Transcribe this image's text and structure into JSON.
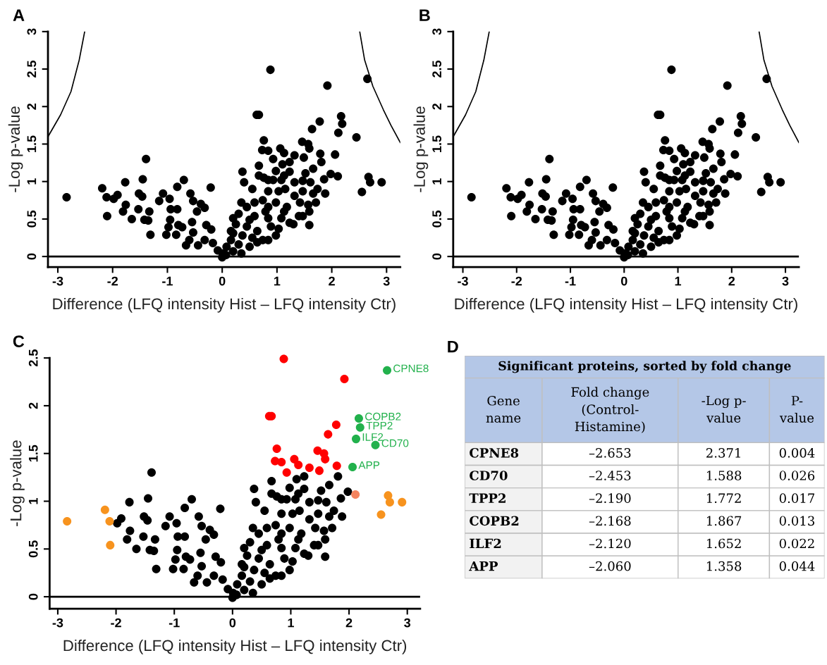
{
  "chart_data": [
    {
      "type": "scatter",
      "title": "A",
      "xlabel": "Difference (LFQ intensity Hist – LFQ intensity Ctr)",
      "ylabel": "-Log p-value",
      "xlim": [
        -3.18,
        3.25
      ],
      "ylim": [
        -0.14,
        3
      ],
      "xticks": [
        -3,
        -2,
        -1,
        0,
        1,
        2,
        3
      ],
      "yticks": [
        0,
        0.5,
        1,
        1.5,
        2,
        2.5,
        3
      ],
      "marker": "circle",
      "grid": false,
      "legend": false,
      "ref_lines": [
        {
          "axis": "y",
          "value": 0,
          "color": "#000000"
        }
      ],
      "series": [
        {
          "type": "line",
          "marker": "none",
          "color": "#000000",
          "x": [
            -3.17,
            -2.95,
            -2.76,
            -2.61,
            -2.51
          ],
          "values": [
            1.61,
            1.89,
            2.2,
            2.62,
            3.0
          ]
        },
        {
          "type": "line",
          "marker": "none",
          "color": "#000000",
          "x": [
            2.51,
            2.6,
            2.75,
            2.94,
            3.08,
            3.25
          ],
          "values": [
            3.0,
            2.62,
            2.27,
            1.96,
            1.75,
            1.52
          ]
        },
        {
          "color": "#000000",
          "x": [
            -1.77,
            -1.91,
            -1.98,
            -1.76,
            -1.81,
            -1.65,
            -1.52,
            -1.45,
            -1.46,
            -1.53,
            -1.39,
            -1.42,
            -1.33,
            -1.35,
            -1.31,
            -1.15,
            -1.08,
            -0.96,
            -0.94,
            -0.95,
            -0.98,
            -1.02,
            -0.82,
            -0.8,
            -0.84,
            -0.82,
            -0.7,
            -0.73,
            -0.66,
            -0.58,
            -0.53,
            -0.55,
            -0.53,
            -0.6,
            -0.46,
            -0.39,
            -0.32,
            -0.29,
            -0.2,
            -0.21,
            -0.44,
            -0.32,
            -0.17,
            -0.08,
            0,
            0.07,
            0.37,
            0.67,
            0.67,
            0.76,
            0.84,
            0.98,
            1.1,
            1.23,
            1.81,
            1.66,
            1.52,
            1.98,
            1.23,
            1.08,
            1.32,
            1.47,
            1.61,
            1.74,
            1.88,
            1.66,
            1.86,
            0.4,
            0.55,
            0.84,
            1.03,
            1.15,
            1.47,
            1.32,
            1.57,
            1.59,
            1.3,
            1.59,
            1.4,
            1.18,
            0.98,
            0.84,
            0.74,
            0.59,
            0.45,
            0.35,
            0.3,
            0.59,
            0.84,
            1.08,
            1.23,
            0.89,
            1.03,
            0.64,
            0.45,
            0.25,
            0.2,
            0.37,
            0.55,
            0.74,
            0.98,
            0.16,
            0.3,
            0.5,
            0.2,
            0.08,
            0.35,
            0.64,
            0.84,
            1.13,
            1.42,
            0.79,
            0.5,
            0.2,
            0.16,
            0.01,
            1.71,
            1.47,
            0.93,
            1.13
          ],
          "values": [
            0.99,
            0.82,
            0.77,
            0.69,
            0.6,
            0.5,
            0.84,
            1.03,
            0.8,
            0.63,
            1.3,
            0.49,
            0.6,
            0.48,
            0.29,
            0.74,
            0.84,
            0.77,
            0.63,
            0.49,
            0.39,
            0.29,
            0.63,
            0.42,
            0.29,
            0.93,
            1.02,
            0.39,
            0.15,
            0.84,
            0.74,
            0.46,
            0.32,
            0.22,
            0.6,
            0.7,
            0.65,
            0.42,
            0.36,
            0.92,
            0.15,
            0.22,
            0.18,
            0.08,
            -0.01,
            0.02,
            1.13,
            1.21,
            1.08,
            1.05,
            1.02,
            1.14,
            1.23,
            1.26,
            1.26,
            1.17,
            1.11,
            1.1,
            1.13,
            1.02,
            0.99,
            1.01,
            0.99,
            0.9,
            0.84,
            0.84,
            1.03,
            0.99,
            0.9,
            0.87,
            0.87,
            0.9,
            0.87,
            0.81,
            0.69,
            0.6,
            0.43,
            0.42,
            0.54,
            0.66,
            0.72,
            0.66,
            0.75,
            0.72,
            0.66,
            0.72,
            0.57,
            0.54,
            0.51,
            0.51,
            0.45,
            0.4,
            0.37,
            0.34,
            0.4,
            0.43,
            0.31,
            0.28,
            0.25,
            0.22,
            0.28,
            0.22,
            0.16,
            0.13,
            0.07,
            0.13,
            0.04,
            0.19,
            0.22,
            0.6,
            0.72,
            0.6,
            0.49,
            0.51,
            0.34,
            0.04,
            0.72,
            0.54,
            1.02,
            1.08
          ]
        },
        {
          "color": "#000000",
          "x": [
            0.88,
            1.92,
            0.63,
            0.67,
            1.78,
            1.64,
            0.76,
            1.46,
            1.57,
            1.59,
            0.73,
            0.84,
            1.06,
            1.13,
            0.93,
            1.32,
            1.49,
            1.79
          ],
          "values": [
            2.49,
            2.28,
            1.89,
            1.89,
            1.8,
            1.7,
            1.55,
            1.53,
            1.5,
            1.44,
            1.42,
            1.41,
            1.44,
            1.38,
            1.3,
            1.35,
            1.32,
            1.37
          ]
        },
        {
          "color": "#000000",
          "x": [
            -2.84,
            -2.19,
            -2.11,
            -2.1,
            2.11,
            2.67,
            2.7,
            2.91,
            2.55
          ],
          "values": [
            0.79,
            0.91,
            0.79,
            0.54,
            1.07,
            1.06,
            0.99,
            0.99,
            0.86
          ]
        },
        {
          "color": "#000000",
          "x": [
            2.65,
            2.45,
            2.19,
            2.17,
            2.12,
            2.06
          ],
          "values": [
            2.37,
            1.59,
            1.77,
            1.87,
            1.65,
            1.36
          ]
        }
      ]
    },
    {
      "type": "scatter",
      "title": "B",
      "xlabel": "Difference (LFQ intensity Hist – LFQ intensity Ctr)",
      "ylabel": "-Log p-value",
      "xlim": [
        -3.18,
        3.25
      ],
      "ylim": [
        -0.14,
        3
      ],
      "xticks": [
        -3,
        -2,
        -1,
        0,
        1,
        2,
        3
      ],
      "yticks": [
        0,
        0.5,
        1,
        1.5,
        2,
        2.5,
        3
      ],
      "marker": "circle",
      "grid": false,
      "legend": false,
      "ref_lines": [
        {
          "axis": "y",
          "value": 0,
          "color": "#000000"
        }
      ],
      "series": [
        {
          "type": "line",
          "marker": "none",
          "color": "#000000",
          "x": [
            -3.17,
            -2.95,
            -2.76,
            -2.61,
            -2.51
          ],
          "values": [
            1.61,
            1.89,
            2.2,
            2.62,
            3.0
          ]
        },
        {
          "type": "line",
          "marker": "none",
          "color": "#000000",
          "x": [
            2.51,
            2.6,
            2.75,
            2.94,
            3.08,
            3.25
          ],
          "values": [
            3.0,
            2.62,
            2.27,
            1.96,
            1.75,
            1.52
          ]
        },
        {
          "color": "#000000",
          "x": [
            -1.77,
            -1.91,
            -1.98,
            -1.76,
            -1.81,
            -1.65,
            -1.52,
            -1.45,
            -1.46,
            -1.53,
            -1.39,
            -1.42,
            -1.33,
            -1.35,
            -1.31,
            -1.15,
            -1.08,
            -0.96,
            -0.94,
            -0.95,
            -0.98,
            -1.02,
            -0.82,
            -0.8,
            -0.84,
            -0.82,
            -0.7,
            -0.73,
            -0.66,
            -0.58,
            -0.53,
            -0.55,
            -0.53,
            -0.6,
            -0.46,
            -0.39,
            -0.32,
            -0.29,
            -0.2,
            -0.21,
            -0.44,
            -0.32,
            -0.17,
            -0.08,
            0,
            0.07,
            0.37,
            0.67,
            0.67,
            0.76,
            0.84,
            0.98,
            1.1,
            1.23,
            1.81,
            1.66,
            1.52,
            1.98,
            1.23,
            1.08,
            1.32,
            1.47,
            1.61,
            1.74,
            1.88,
            1.66,
            1.86,
            0.4,
            0.55,
            0.84,
            1.03,
            1.15,
            1.47,
            1.32,
            1.57,
            1.59,
            1.3,
            1.59,
            1.4,
            1.18,
            0.98,
            0.84,
            0.74,
            0.59,
            0.45,
            0.35,
            0.3,
            0.59,
            0.84,
            1.08,
            1.23,
            0.89,
            1.03,
            0.64,
            0.45,
            0.25,
            0.2,
            0.37,
            0.55,
            0.74,
            0.98,
            0.16,
            0.3,
            0.5,
            0.2,
            0.08,
            0.35,
            0.64,
            0.84,
            1.13,
            1.42,
            0.79,
            0.5,
            0.2,
            0.16,
            0.01,
            1.71,
            1.47,
            0.93,
            1.13
          ],
          "values": [
            0.99,
            0.82,
            0.77,
            0.69,
            0.6,
            0.5,
            0.84,
            1.03,
            0.8,
            0.63,
            1.3,
            0.49,
            0.6,
            0.48,
            0.29,
            0.74,
            0.84,
            0.77,
            0.63,
            0.49,
            0.39,
            0.29,
            0.63,
            0.42,
            0.29,
            0.93,
            1.02,
            0.39,
            0.15,
            0.84,
            0.74,
            0.46,
            0.32,
            0.22,
            0.6,
            0.7,
            0.65,
            0.42,
            0.36,
            0.92,
            0.15,
            0.22,
            0.18,
            0.08,
            -0.01,
            0.02,
            1.13,
            1.21,
            1.08,
            1.05,
            1.02,
            1.14,
            1.23,
            1.26,
            1.26,
            1.17,
            1.11,
            1.1,
            1.13,
            1.02,
            0.99,
            1.01,
            0.99,
            0.9,
            0.84,
            0.84,
            1.03,
            0.99,
            0.9,
            0.87,
            0.87,
            0.9,
            0.87,
            0.81,
            0.69,
            0.6,
            0.43,
            0.42,
            0.54,
            0.66,
            0.72,
            0.66,
            0.75,
            0.72,
            0.66,
            0.72,
            0.57,
            0.54,
            0.51,
            0.51,
            0.45,
            0.4,
            0.37,
            0.34,
            0.4,
            0.43,
            0.31,
            0.28,
            0.25,
            0.22,
            0.28,
            0.22,
            0.16,
            0.13,
            0.07,
            0.13,
            0.04,
            0.19,
            0.22,
            0.6,
            0.72,
            0.6,
            0.49,
            0.51,
            0.34,
            0.04,
            0.72,
            0.54,
            1.02,
            1.08
          ]
        },
        {
          "color": "#000000",
          "x": [
            0.88,
            1.92,
            0.63,
            0.67,
            1.78,
            1.64,
            0.76,
            1.46,
            1.57,
            1.59,
            0.73,
            0.84,
            1.06,
            1.13,
            0.93,
            1.32,
            1.49,
            1.79
          ],
          "values": [
            2.49,
            2.28,
            1.89,
            1.89,
            1.8,
            1.7,
            1.55,
            1.53,
            1.5,
            1.44,
            1.42,
            1.41,
            1.44,
            1.38,
            1.3,
            1.35,
            1.32,
            1.37
          ]
        },
        {
          "color": "#000000",
          "x": [
            -2.84,
            -2.19,
            -2.11,
            -2.1,
            2.11,
            2.67,
            2.7,
            2.91,
            2.55
          ],
          "values": [
            0.79,
            0.91,
            0.79,
            0.54,
            1.07,
            1.06,
            0.99,
            0.99,
            0.86
          ]
        },
        {
          "color": "#000000",
          "x": [
            2.65,
            2.45,
            2.19,
            2.17,
            2.12,
            2.06
          ],
          "values": [
            2.37,
            1.59,
            1.77,
            1.87,
            1.65,
            1.36
          ]
        }
      ]
    },
    {
      "type": "scatter",
      "title": "C",
      "xlabel": "Difference (LFQ intensity Hist – LFQ intensity Ctr)",
      "ylabel": "-Log p-value",
      "xlim": [
        -3.14,
        3.22
      ],
      "ylim": [
        -0.125,
        2.5
      ],
      "xticks": [
        -3,
        -2,
        -1,
        0,
        1,
        2,
        3
      ],
      "yticks": [
        0,
        0.5,
        1,
        1.5,
        2,
        2.5
      ],
      "marker": "circle",
      "grid": false,
      "legend": false,
      "ref_lines": [
        {
          "axis": "y",
          "value": 0,
          "color": "#000000"
        }
      ],
      "annotations": [
        {
          "text": "CPNE8",
          "x": 2.653,
          "y": 2.371
        },
        {
          "text": "COPB2",
          "x": 2.168,
          "y": 1.867
        },
        {
          "text": "TPP2",
          "x": 2.19,
          "y": 1.772
        },
        {
          "text": "ILF2",
          "x": 2.12,
          "y": 1.652
        },
        {
          "text": "CD70",
          "x": 2.453,
          "y": 1.588
        },
        {
          "text": "APP",
          "x": 2.06,
          "y": 1.358
        }
      ],
      "series": [
        {
          "color": "#000000",
          "x": [
            -1.77,
            -1.91,
            -1.98,
            -1.76,
            -1.81,
            -1.65,
            -1.52,
            -1.45,
            -1.46,
            -1.53,
            -1.39,
            -1.42,
            -1.33,
            -1.35,
            -1.31,
            -1.15,
            -1.08,
            -0.96,
            -0.94,
            -0.95,
            -0.98,
            -1.02,
            -0.82,
            -0.8,
            -0.84,
            -0.82,
            -0.7,
            -0.73,
            -0.66,
            -0.58,
            -0.53,
            -0.55,
            -0.53,
            -0.6,
            -0.46,
            -0.39,
            -0.32,
            -0.29,
            -0.2,
            -0.21,
            -0.44,
            -0.32,
            -0.17,
            -0.08,
            0,
            0.07,
            0.37,
            0.67,
            0.67,
            0.76,
            0.84,
            0.98,
            1.1,
            1.23,
            1.81,
            1.66,
            1.52,
            1.98,
            1.23,
            1.08,
            1.32,
            1.47,
            1.61,
            1.74,
            1.88,
            1.66,
            1.86,
            0.4,
            0.55,
            0.84,
            1.03,
            1.15,
            1.47,
            1.32,
            1.57,
            1.59,
            1.3,
            1.59,
            1.4,
            1.18,
            0.98,
            0.84,
            0.74,
            0.59,
            0.45,
            0.35,
            0.3,
            0.59,
            0.84,
            1.08,
            1.23,
            0.89,
            1.03,
            0.64,
            0.45,
            0.25,
            0.2,
            0.37,
            0.55,
            0.74,
            0.98,
            0.16,
            0.3,
            0.5,
            0.2,
            0.08,
            0.35,
            0.64,
            0.84,
            1.13,
            1.42,
            0.79,
            0.5,
            0.2,
            0.16,
            0.01,
            1.71,
            1.47,
            0.93,
            1.13
          ],
          "values": [
            0.99,
            0.82,
            0.77,
            0.69,
            0.6,
            0.5,
            0.84,
            1.03,
            0.8,
            0.63,
            1.3,
            0.49,
            0.6,
            0.48,
            0.29,
            0.74,
            0.84,
            0.77,
            0.63,
            0.49,
            0.39,
            0.29,
            0.63,
            0.42,
            0.29,
            0.93,
            1.02,
            0.39,
            0.15,
            0.84,
            0.74,
            0.46,
            0.32,
            0.22,
            0.6,
            0.7,
            0.65,
            0.42,
            0.36,
            0.92,
            0.15,
            0.22,
            0.18,
            0.08,
            -0.01,
            0.02,
            1.13,
            1.21,
            1.08,
            1.05,
            1.02,
            1.14,
            1.23,
            1.26,
            1.26,
            1.17,
            1.11,
            1.1,
            1.13,
            1.02,
            0.99,
            1.01,
            0.99,
            0.9,
            0.84,
            0.84,
            1.03,
            0.99,
            0.9,
            0.87,
            0.87,
            0.9,
            0.87,
            0.81,
            0.69,
            0.6,
            0.43,
            0.42,
            0.54,
            0.66,
            0.72,
            0.66,
            0.75,
            0.72,
            0.66,
            0.72,
            0.57,
            0.54,
            0.51,
            0.51,
            0.45,
            0.4,
            0.37,
            0.34,
            0.4,
            0.43,
            0.31,
            0.28,
            0.25,
            0.22,
            0.28,
            0.22,
            0.16,
            0.13,
            0.07,
            0.13,
            0.04,
            0.19,
            0.22,
            0.6,
            0.72,
            0.6,
            0.49,
            0.51,
            0.34,
            0.04,
            0.72,
            0.54,
            1.02,
            1.08
          ]
        },
        {
          "color": "#ff0000",
          "x": [
            0.88,
            1.92,
            0.63,
            0.67,
            1.78,
            1.64,
            0.76,
            1.46,
            1.57,
            1.59,
            0.73,
            0.84,
            1.06,
            1.13,
            0.93,
            1.32,
            1.49,
            1.79
          ],
          "values": [
            2.49,
            2.28,
            1.89,
            1.89,
            1.8,
            1.7,
            1.55,
            1.53,
            1.5,
            1.44,
            1.42,
            1.41,
            1.44,
            1.38,
            1.3,
            1.35,
            1.32,
            1.37
          ]
        },
        {
          "colors": [
            "#f7931e",
            "#f7931e",
            "#f7931e",
            "#f7931e",
            "#f4845f",
            "#f7931e",
            "#f7931e",
            "#f7931e",
            "#f7931e"
          ],
          "x": [
            -2.84,
            -2.19,
            -2.11,
            -2.1,
            2.11,
            2.67,
            2.7,
            2.91,
            2.55
          ],
          "values": [
            0.79,
            0.91,
            0.79,
            0.54,
            1.07,
            1.06,
            0.99,
            0.99,
            0.86
          ]
        },
        {
          "color": "#22b14c",
          "x": [
            2.653,
            2.453,
            2.19,
            2.168,
            2.12,
            2.06
          ],
          "values": [
            2.371,
            1.588,
            1.772,
            1.867,
            1.652,
            1.358
          ]
        }
      ]
    },
    {
      "type": "other",
      "title": "D",
      "subtitle": "Significant proteins, sorted by fold change",
      "categories": [
        "Gene\nname",
        "Fold change\n(Control-\nHistamine)",
        "-Log p-\nvalue",
        "P-\nvalue"
      ],
      "y_categories": [
        "CPNE8",
        "CD70",
        "TPP2",
        "COPB2",
        "ILF2",
        "APP"
      ],
      "cell_labels": [
        [
          "–2.653",
          "2.371",
          "0.004"
        ],
        [
          "–2.453",
          "1.588",
          "0.026"
        ],
        [
          "–2.190",
          "1.772",
          "0.017"
        ],
        [
          "–2.168",
          "1.867",
          "0.013"
        ],
        [
          "–2.120",
          "1.652",
          "0.022"
        ],
        [
          "–2.060",
          "1.358",
          "0.044"
        ]
      ]
    }
  ]
}
